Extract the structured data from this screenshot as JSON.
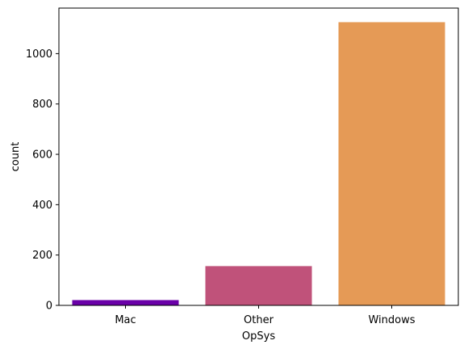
{
  "chart_data": {
    "type": "bar",
    "xlabel": "OpSys",
    "ylabel": "count",
    "categories": [
      "Mac",
      "Other",
      "Windows"
    ],
    "values": [
      21,
      156,
      1125
    ],
    "colors": [
      "#6a00a8",
      "#c0527a",
      "#e59a56"
    ],
    "ylim": [
      0,
      1181
    ],
    "yticks": [
      0,
      200,
      400,
      600,
      800,
      1000
    ],
    "grid": false,
    "legend": "none"
  }
}
